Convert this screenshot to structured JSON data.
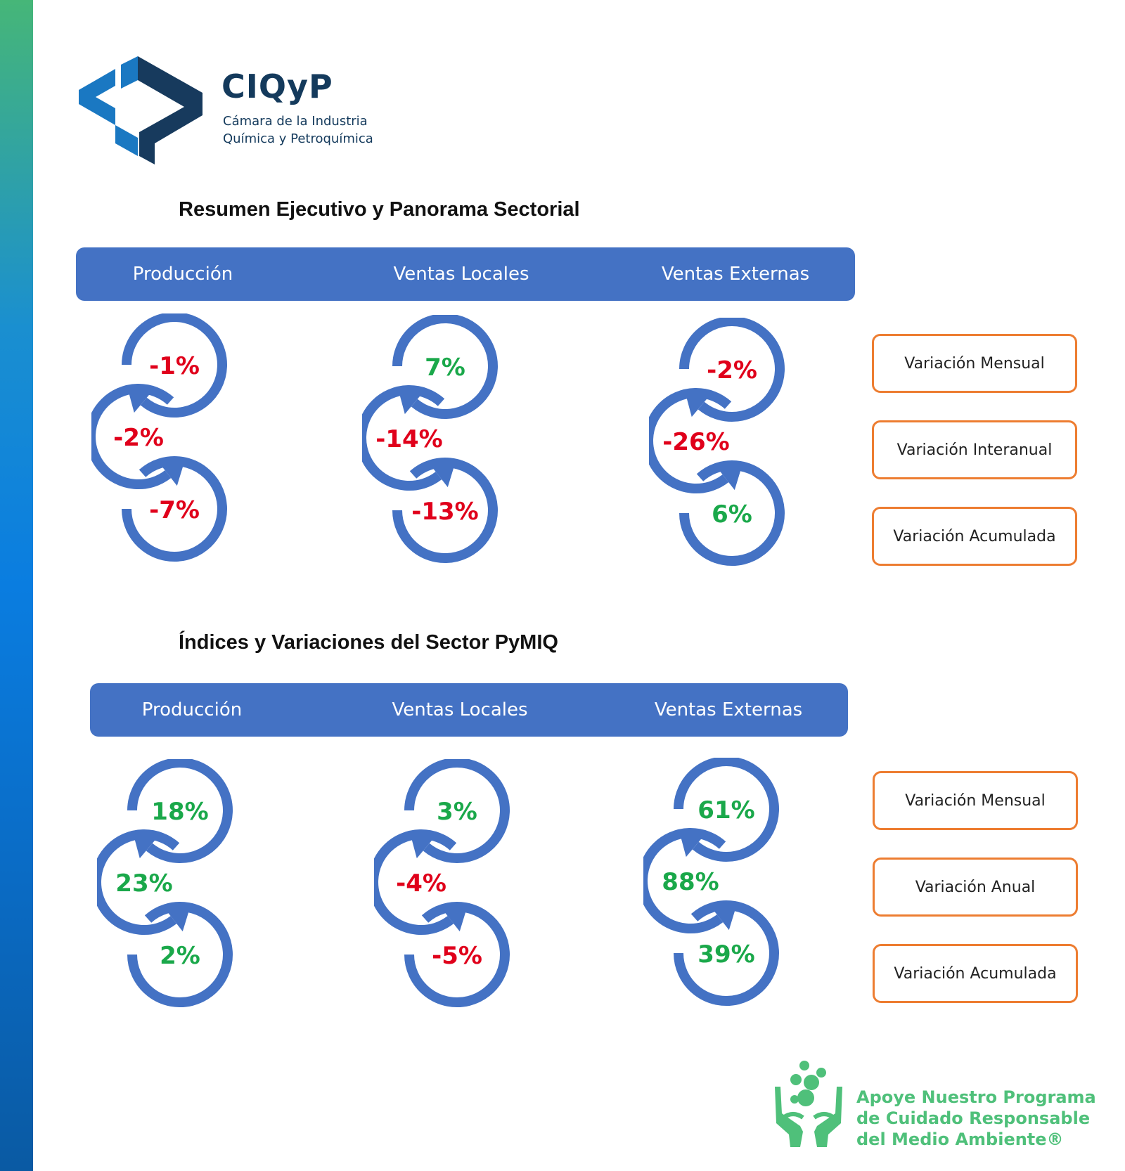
{
  "logo": {
    "name": "CIQyP",
    "subtitle_line1": "Cámara de la Industria",
    "subtitle_line2": "Química y Petroquímica"
  },
  "sections": [
    {
      "title": "Resumen Ejecutivo y Panorama Sectorial",
      "columns": [
        {
          "label": "Producción",
          "values": [
            "-1%",
            "-2%",
            "-7%"
          ],
          "signs": [
            "neg",
            "neg",
            "neg"
          ]
        },
        {
          "label": "Ventas Locales",
          "values": [
            "7%",
            "-14%",
            "-13%"
          ],
          "signs": [
            "pos",
            "neg",
            "neg"
          ]
        },
        {
          "label": "Ventas Externas",
          "values": [
            "-2%",
            "-26%",
            "6%"
          ],
          "signs": [
            "neg",
            "neg",
            "pos"
          ]
        }
      ],
      "legend": [
        "Variación Mensual",
        "Variación Interanual",
        "Variación Acumulada"
      ]
    },
    {
      "title": "Índices y Variaciones del Sector PyMIQ",
      "columns": [
        {
          "label": "Producción",
          "values": [
            "18%",
            "23%",
            "2%"
          ],
          "signs": [
            "pos",
            "pos",
            "pos"
          ]
        },
        {
          "label": "Ventas Locales",
          "values": [
            "3%",
            "-4%",
            "-5%"
          ],
          "signs": [
            "pos",
            "neg",
            "neg"
          ]
        },
        {
          "label": "Ventas Externas",
          "values": [
            "61%",
            "88%",
            "39%"
          ],
          "signs": [
            "pos",
            "pos",
            "pos"
          ]
        }
      ],
      "legend": [
        "Variación Mensual",
        "Variación Anual",
        "Variación Acumulada"
      ]
    }
  ],
  "colors": {
    "band": "#4472c4",
    "arrow": "#4472c4",
    "positive": "#1aa84a",
    "negative": "#e0001b",
    "legend_border": "#ed7d31",
    "footer_green": "#4fc07a"
  },
  "footer": {
    "line1": "Apoye Nuestro Programa",
    "line2": "de Cuidado Responsable",
    "line3": "del Medio Ambiente®"
  }
}
